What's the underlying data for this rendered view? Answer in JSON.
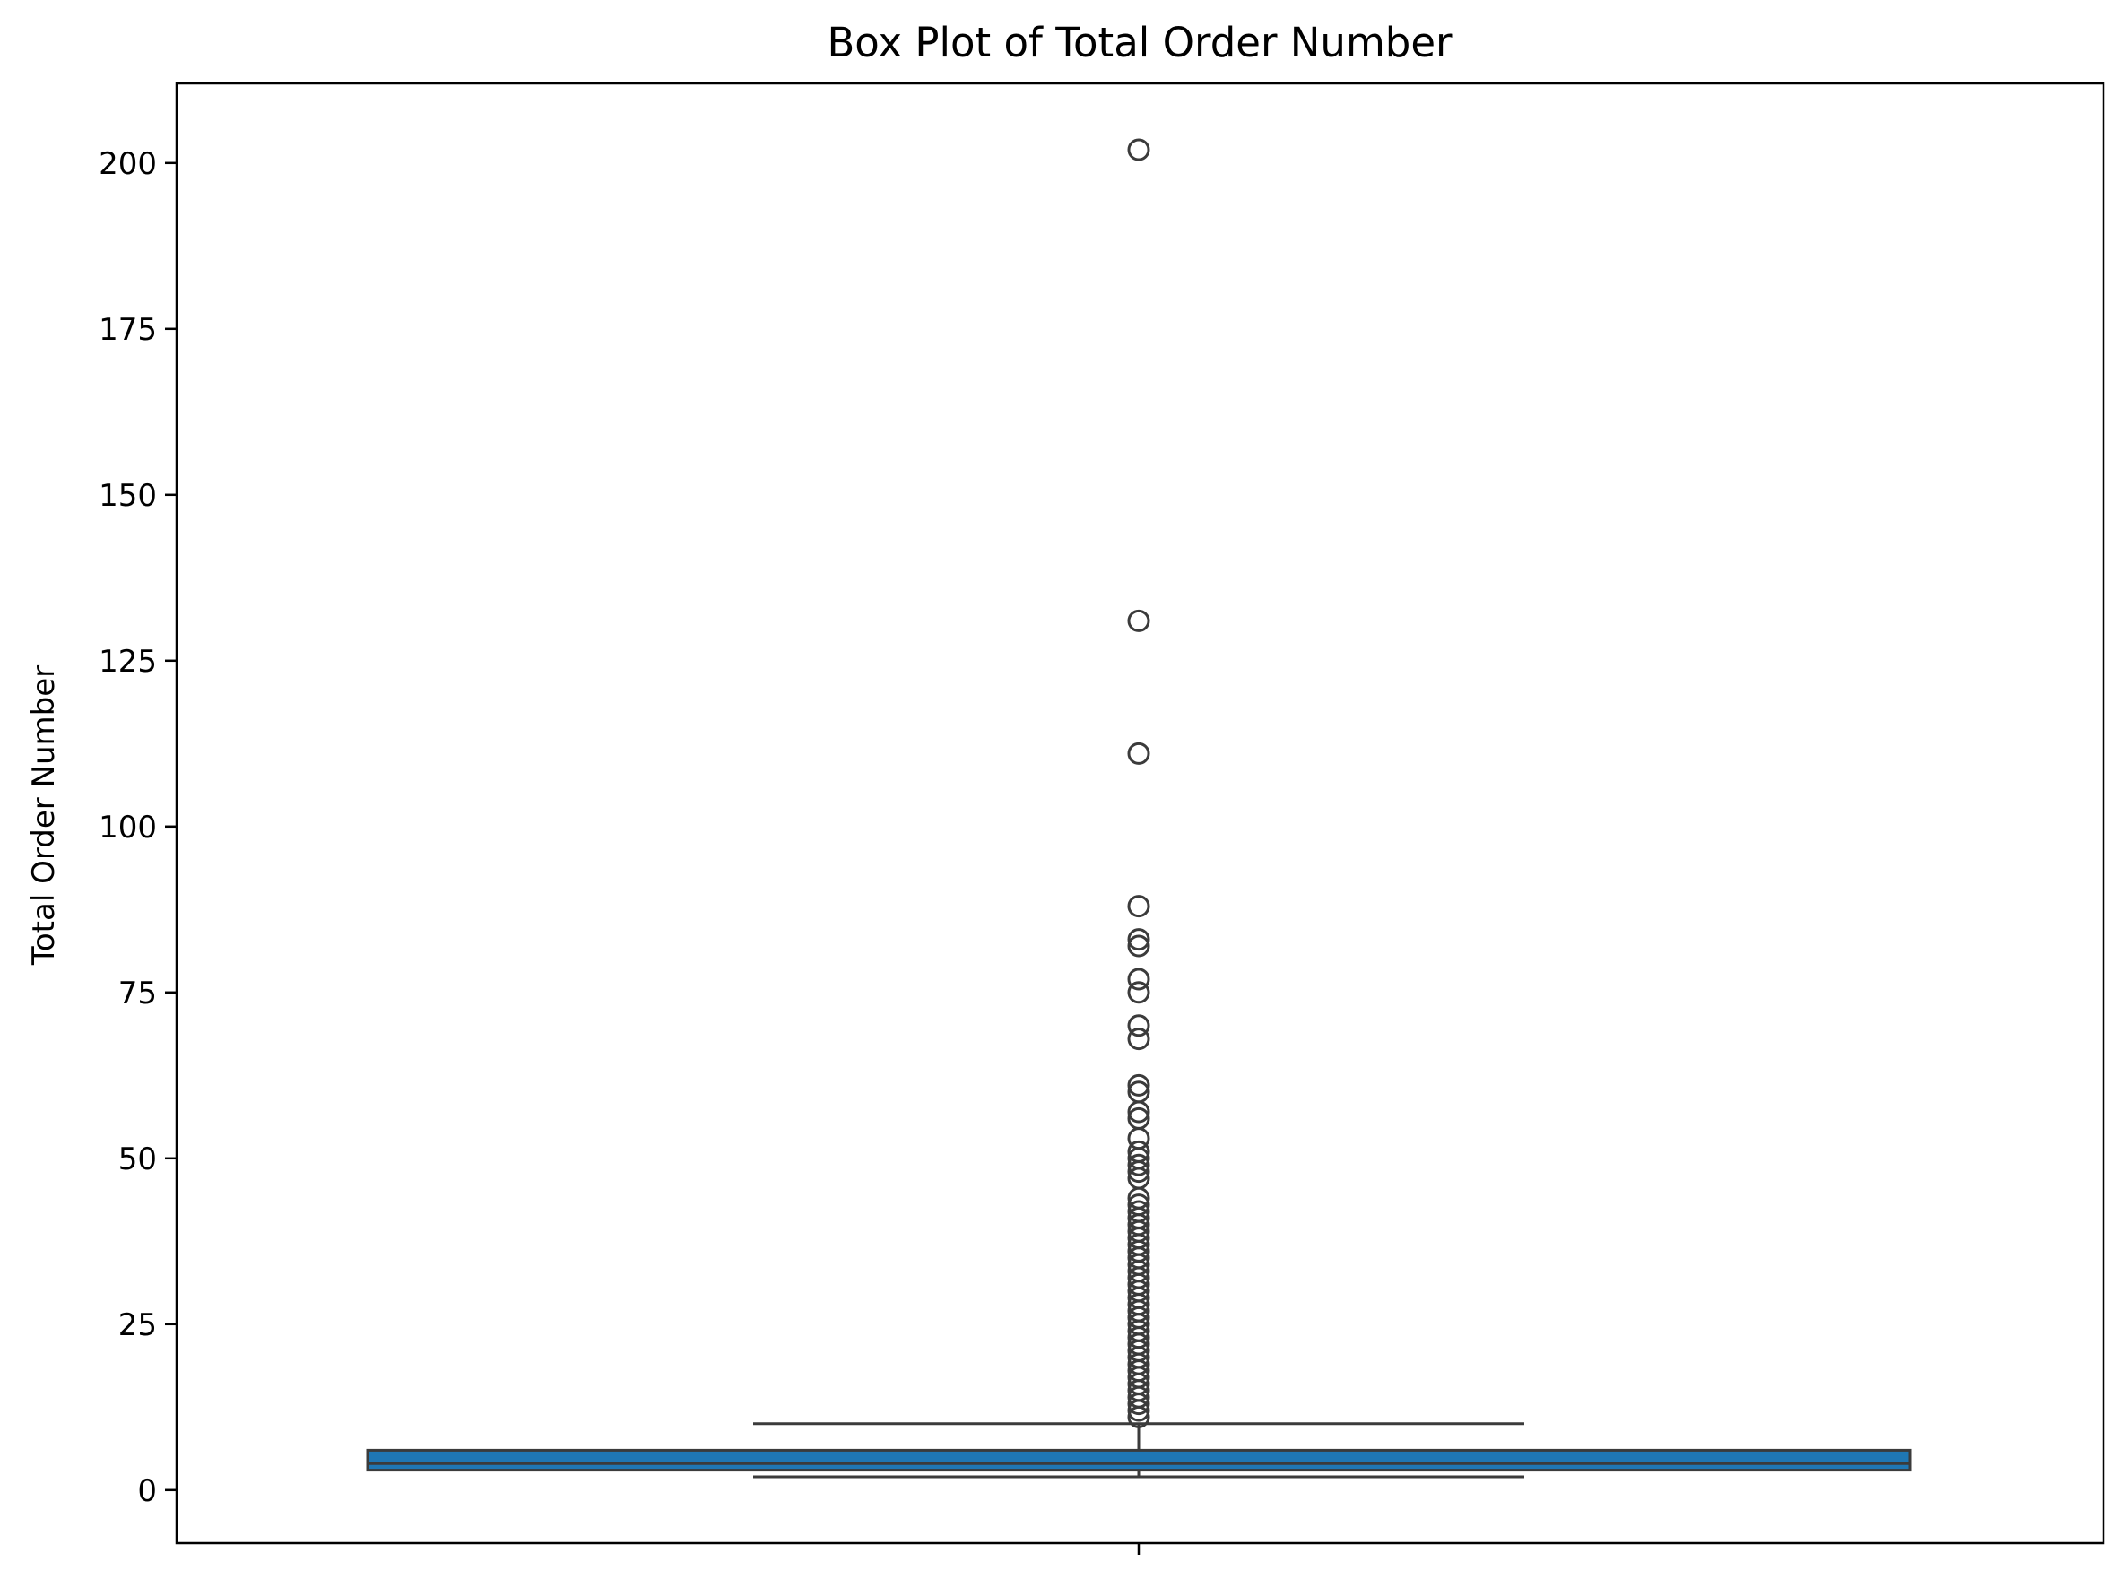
{
  "chart_data": {
    "type": "box",
    "title": "Box Plot of Total Order Number",
    "xlabel": "",
    "ylabel": "Total Order Number",
    "ylim": [
      -8,
      212
    ],
    "yticks": [
      0,
      25,
      50,
      75,
      100,
      125,
      150,
      175,
      200
    ],
    "ytick_labels": [
      "0",
      "25",
      "50",
      "75",
      "100",
      "125",
      "150",
      "175",
      "200"
    ],
    "grid": false,
    "colors": {
      "box_fill": "#1f77b4",
      "line": "#3b3b3b",
      "axes": "#000000"
    },
    "boxes": [
      {
        "name": "Total Order Number",
        "whisker_low": 2,
        "q1": 3,
        "median": 4,
        "q3": 6,
        "whisker_high": 10,
        "outliers": [
          11,
          12,
          13,
          14,
          15,
          16,
          17,
          18,
          19,
          20,
          21,
          22,
          23,
          24,
          25,
          26,
          27,
          28,
          29,
          30,
          31,
          32,
          33,
          34,
          35,
          36,
          37,
          38,
          39,
          40,
          41,
          42,
          43,
          44,
          47,
          48,
          49,
          50,
          51,
          53,
          56,
          57,
          60,
          61,
          68,
          70,
          75,
          77,
          82,
          83,
          88,
          111,
          131,
          202
        ]
      }
    ]
  }
}
